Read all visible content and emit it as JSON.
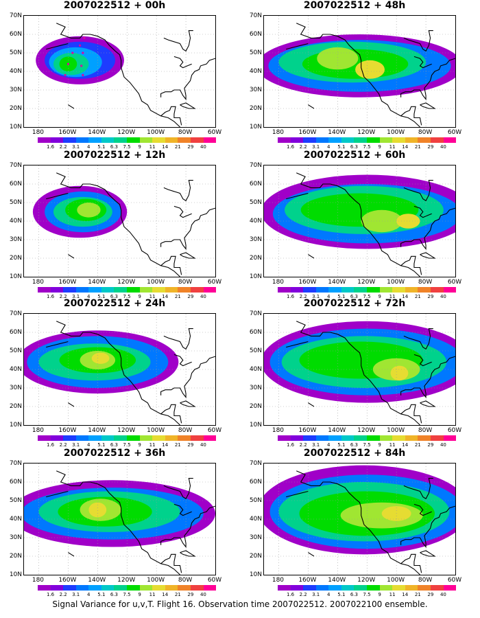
{
  "panels": [
    {
      "title": "2007022512 + 00h"
    },
    {
      "title": "2007022512 + 48h"
    },
    {
      "title": "2007022512 + 12h"
    },
    {
      "title": "2007022512 + 60h"
    },
    {
      "title": "2007022512 + 24h"
    },
    {
      "title": "2007022512 + 72h"
    },
    {
      "title": "2007022512 + 36h"
    },
    {
      "title": "2007022512 + 84h"
    }
  ],
  "y_ticks": [
    "70N",
    "60N",
    "50N",
    "40N",
    "30N",
    "20N",
    "10N"
  ],
  "x_ticks": [
    "180",
    "160W",
    "140W",
    "120W",
    "100W",
    "80W",
    "60W"
  ],
  "colorbar": {
    "labels": [
      "1.6",
      "2.2",
      "3.1",
      "4",
      "5.1",
      "6.3",
      "7.5",
      "9",
      "11",
      "14",
      "21",
      "29",
      "40"
    ],
    "colors": [
      "#a000c8",
      "#8200dc",
      "#1e3cff",
      "#0078ff",
      "#00a0ff",
      "#00c8c8",
      "#00d28c",
      "#00dc00",
      "#a0e632",
      "#e6dc32",
      "#f0b428",
      "#f08228",
      "#f04040",
      "#ff0096"
    ]
  },
  "caption": "Signal Variance for u,v,T. Flight 16. Observation time 2007022512. 2007022100 ensemble.",
  "colors": {
    "land_outline": "#000000",
    "flight_track": "#e000a0",
    "grid": "#999999"
  }
}
